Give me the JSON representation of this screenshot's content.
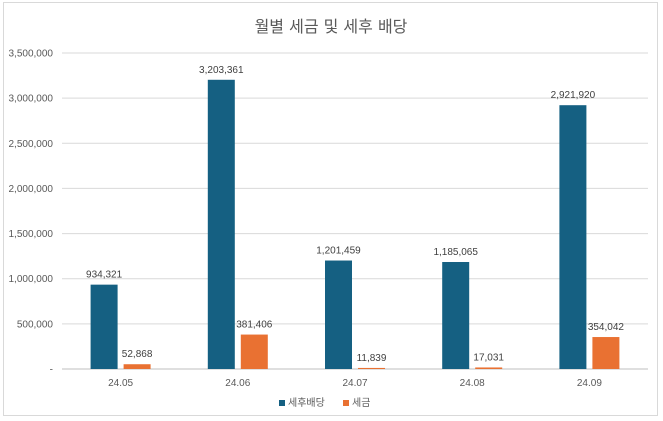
{
  "chart_data": {
    "type": "bar",
    "title": "월별 세금 및 세후 배당",
    "categories": [
      "24.05",
      "24.06",
      "24.07",
      "24.08",
      "24.09"
    ],
    "series": [
      {
        "name": "세후배당",
        "color": "#156082",
        "values": [
          934321,
          3203361,
          1201459,
          1185065,
          2921920
        ],
        "labels": [
          "934,321",
          "3,203,361",
          "1,201,459",
          "1,185,065",
          "2,921,920"
        ]
      },
      {
        "name": "세금",
        "color": "#E97132",
        "values": [
          52868,
          381406,
          11839,
          17031,
          354042
        ],
        "labels": [
          "52,868",
          "381,406",
          "11,839",
          "17,031",
          "354,042"
        ]
      }
    ],
    "ylim": [
      0,
      3500000
    ],
    "yticks": [
      0,
      500000,
      1000000,
      1500000,
      2000000,
      2500000,
      3000000,
      3500000
    ],
    "ytick_labels": [
      "-",
      "500,000",
      "1,000,000",
      "1,500,000",
      "2,000,000",
      "2,500,000",
      "3,000,000",
      "3,500,000"
    ],
    "grid": true,
    "legend": "bottom",
    "xlabel": "",
    "ylabel": ""
  }
}
